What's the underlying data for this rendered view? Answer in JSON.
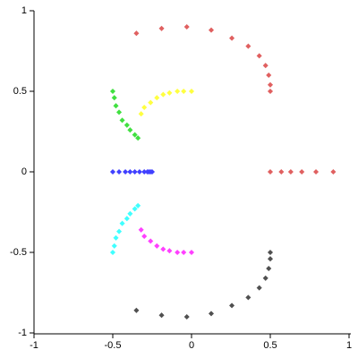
{
  "chart_data": {
    "type": "scatter",
    "xlim": [
      -1,
      1
    ],
    "ylim": [
      -1,
      1
    ],
    "xticks": [
      -1,
      -0.5,
      0,
      0.5,
      1
    ],
    "yticks": [
      -1,
      -0.5,
      0,
      0.5,
      1
    ],
    "series": [
      {
        "color": "#e06060",
        "x": [
          -0.35,
          -0.19,
          -0.03,
          0.125,
          0.256,
          0.36,
          0.43,
          0.47,
          0.49,
          0.5,
          0.5
        ],
        "y": [
          0.86,
          0.89,
          0.9,
          0.88,
          0.83,
          0.78,
          0.72,
          0.66,
          0.6,
          0.54,
          0.5
        ]
      },
      {
        "color": "#e06060",
        "x": [
          0.5,
          0.57,
          0.63,
          0.7,
          0.79,
          0.9
        ],
        "y": [
          0,
          0,
          0,
          0,
          0,
          0
        ]
      },
      {
        "color": "#505050",
        "x": [
          -0.35,
          -0.19,
          -0.03,
          0.125,
          0.256,
          0.36,
          0.43,
          0.47,
          0.49,
          0.5,
          0.5
        ],
        "y": [
          -0.86,
          -0.89,
          -0.9,
          -0.88,
          -0.83,
          -0.78,
          -0.72,
          -0.66,
          -0.6,
          -0.54,
          -0.5
        ]
      },
      {
        "color": "#ffff40",
        "x": [
          -0.32,
          -0.3,
          -0.26,
          -0.22,
          -0.18,
          -0.14,
          -0.09,
          -0.05,
          0
        ],
        "y": [
          0.36,
          0.4,
          0.43,
          0.46,
          0.48,
          0.49,
          0.5,
          0.5,
          0.5
        ]
      },
      {
        "color": "#ff40ff",
        "x": [
          -0.32,
          -0.3,
          -0.26,
          -0.22,
          -0.18,
          -0.14,
          -0.09,
          -0.05,
          0
        ],
        "y": [
          -0.36,
          -0.4,
          -0.43,
          -0.46,
          -0.48,
          -0.49,
          -0.5,
          -0.5,
          -0.5
        ]
      },
      {
        "color": "#40e040",
        "x": [
          -0.5,
          -0.49,
          -0.48,
          -0.46,
          -0.44,
          -0.41,
          -0.39,
          -0.36,
          -0.34
        ],
        "y": [
          0.5,
          0.46,
          0.41,
          0.37,
          0.32,
          0.29,
          0.26,
          0.23,
          0.21
        ]
      },
      {
        "color": "#40ffff",
        "x": [
          -0.5,
          -0.49,
          -0.48,
          -0.46,
          -0.44,
          -0.41,
          -0.39,
          -0.36,
          -0.34
        ],
        "y": [
          -0.5,
          -0.46,
          -0.41,
          -0.37,
          -0.32,
          -0.29,
          -0.26,
          -0.23,
          -0.21
        ]
      },
      {
        "color": "#4040ff",
        "x": [
          -0.5,
          -0.46,
          -0.42,
          -0.39,
          -0.36,
          -0.33,
          -0.3,
          -0.28,
          -0.27,
          -0.26,
          -0.25
        ],
        "y": [
          0,
          0,
          0,
          0,
          0,
          0,
          0,
          0,
          0,
          0,
          0
        ]
      }
    ]
  }
}
